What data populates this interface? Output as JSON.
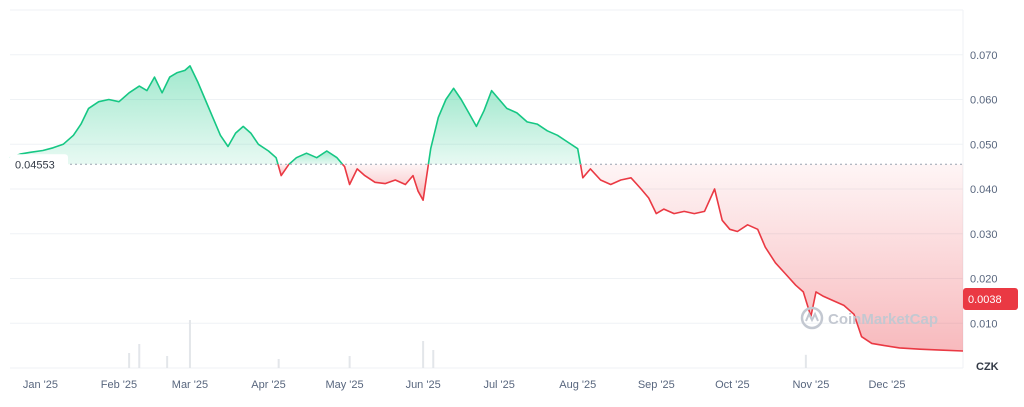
{
  "chart_data": {
    "type": "area",
    "reference_value": 0.04553,
    "reference_label": "0.04553",
    "current_value_label": "0.0038",
    "currency_label": "CZK",
    "watermark": "CoinMarketCap",
    "ylim": [
      0,
      0.08
    ],
    "y_ticks": [
      0.01,
      0.02,
      0.03,
      0.04,
      0.05,
      0.06,
      0.07
    ],
    "y_tick_labels": [
      "0.010",
      "0.020",
      "0.030",
      "0.040",
      "0.050",
      "0.060",
      "0.070"
    ],
    "x_ticks": [
      {
        "date": "2025-01-01",
        "label": "Jan '25"
      },
      {
        "date": "2025-02-01",
        "label": "Feb '25"
      },
      {
        "date": "2025-03-01",
        "label": "Mar '25"
      },
      {
        "date": "2025-04-01",
        "label": "Apr '25"
      },
      {
        "date": "2025-05-01",
        "label": "May '25"
      },
      {
        "date": "2025-06-01",
        "label": "Jun '25"
      },
      {
        "date": "2025-07-01",
        "label": "Jul '25"
      },
      {
        "date": "2025-08-01",
        "label": "Aug '25"
      },
      {
        "date": "2025-09-01",
        "label": "Sep '25"
      },
      {
        "date": "2025-10-01",
        "label": "Oct '25"
      },
      {
        "date": "2025-11-01",
        "label": "Nov '25"
      },
      {
        "date": "2025-12-01",
        "label": "Dec '25"
      }
    ],
    "x_range": [
      "2024-12-20",
      "2025-12-31"
    ],
    "colors": {
      "up": "#16c784",
      "down": "#ea3943",
      "grid": "#eff2f5",
      "volume": "#e3e6ea"
    },
    "series": [
      {
        "points": [
          [
            "2024-12-20",
            0.047
          ],
          [
            "2024-12-24",
            0.0478
          ],
          [
            "2024-12-28",
            0.0482
          ],
          [
            "2025-01-02",
            0.0486
          ],
          [
            "2025-01-06",
            0.0492
          ],
          [
            "2025-01-10",
            0.05
          ],
          [
            "2025-01-14",
            0.052
          ],
          [
            "2025-01-17",
            0.0545
          ],
          [
            "2025-01-20",
            0.058
          ],
          [
            "2025-01-24",
            0.0595
          ],
          [
            "2025-01-28",
            0.06
          ],
          [
            "2025-02-01",
            0.0595
          ],
          [
            "2025-02-05",
            0.0615
          ],
          [
            "2025-02-09",
            0.063
          ],
          [
            "2025-02-12",
            0.062
          ],
          [
            "2025-02-15",
            0.065
          ],
          [
            "2025-02-18",
            0.0615
          ],
          [
            "2025-02-21",
            0.065
          ],
          [
            "2025-02-24",
            0.066
          ],
          [
            "2025-02-27",
            0.0665
          ],
          [
            "2025-03-01",
            0.0675
          ],
          [
            "2025-03-04",
            0.064
          ],
          [
            "2025-03-07",
            0.06
          ],
          [
            "2025-03-10",
            0.056
          ],
          [
            "2025-03-13",
            0.052
          ],
          [
            "2025-03-16",
            0.0495
          ],
          [
            "2025-03-19",
            0.0525
          ],
          [
            "2025-03-22",
            0.054
          ],
          [
            "2025-03-25",
            0.0525
          ],
          [
            "2025-03-28",
            0.05
          ],
          [
            "2025-04-01",
            0.0485
          ],
          [
            "2025-04-04",
            0.047
          ],
          [
            "2025-04-06",
            0.043
          ],
          [
            "2025-04-09",
            0.0455
          ],
          [
            "2025-04-12",
            0.047
          ],
          [
            "2025-04-16",
            0.048
          ],
          [
            "2025-04-20",
            0.047
          ],
          [
            "2025-04-24",
            0.0485
          ],
          [
            "2025-04-28",
            0.047
          ],
          [
            "2025-05-01",
            0.045
          ],
          [
            "2025-05-03",
            0.041
          ],
          [
            "2025-05-06",
            0.0445
          ],
          [
            "2025-05-09",
            0.043
          ],
          [
            "2025-05-13",
            0.0415
          ],
          [
            "2025-05-17",
            0.0412
          ],
          [
            "2025-05-21",
            0.042
          ],
          [
            "2025-05-25",
            0.041
          ],
          [
            "2025-05-28",
            0.043
          ],
          [
            "2025-05-30",
            0.0395
          ],
          [
            "2025-06-01",
            0.0375
          ],
          [
            "2025-06-04",
            0.049
          ],
          [
            "2025-06-07",
            0.056
          ],
          [
            "2025-06-10",
            0.06
          ],
          [
            "2025-06-13",
            0.0625
          ],
          [
            "2025-06-16",
            0.06
          ],
          [
            "2025-06-19",
            0.057
          ],
          [
            "2025-06-22",
            0.054
          ],
          [
            "2025-06-25",
            0.0575
          ],
          [
            "2025-06-28",
            0.062
          ],
          [
            "2025-07-01",
            0.06
          ],
          [
            "2025-07-04",
            0.058
          ],
          [
            "2025-07-08",
            0.057
          ],
          [
            "2025-07-12",
            0.055
          ],
          [
            "2025-07-16",
            0.0545
          ],
          [
            "2025-07-20",
            0.053
          ],
          [
            "2025-07-24",
            0.052
          ],
          [
            "2025-07-28",
            0.0505
          ],
          [
            "2025-08-01",
            0.049
          ],
          [
            "2025-08-03",
            0.0425
          ],
          [
            "2025-08-06",
            0.0445
          ],
          [
            "2025-08-10",
            0.042
          ],
          [
            "2025-08-14",
            0.041
          ],
          [
            "2025-08-18",
            0.042
          ],
          [
            "2025-08-22",
            0.0425
          ],
          [
            "2025-08-26",
            0.04
          ],
          [
            "2025-08-29",
            0.038
          ],
          [
            "2025-09-01",
            0.0345
          ],
          [
            "2025-09-04",
            0.0355
          ],
          [
            "2025-09-08",
            0.0345
          ],
          [
            "2025-09-12",
            0.035
          ],
          [
            "2025-09-16",
            0.0345
          ],
          [
            "2025-09-20",
            0.035
          ],
          [
            "2025-09-24",
            0.04
          ],
          [
            "2025-09-27",
            0.033
          ],
          [
            "2025-09-30",
            0.031
          ],
          [
            "2025-10-03",
            0.0305
          ],
          [
            "2025-10-07",
            0.032
          ],
          [
            "2025-10-11",
            0.031
          ],
          [
            "2025-10-14",
            0.027
          ],
          [
            "2025-10-18",
            0.0235
          ],
          [
            "2025-10-22",
            0.021
          ],
          [
            "2025-10-26",
            0.0185
          ],
          [
            "2025-10-29",
            0.017
          ],
          [
            "2025-11-01",
            0.0115
          ],
          [
            "2025-11-03",
            0.017
          ],
          [
            "2025-11-06",
            0.016
          ],
          [
            "2025-11-10",
            0.015
          ],
          [
            "2025-11-14",
            0.014
          ],
          [
            "2025-11-18",
            0.012
          ],
          [
            "2025-11-21",
            0.007
          ],
          [
            "2025-11-25",
            0.0055
          ],
          [
            "2025-11-30",
            0.005
          ],
          [
            "2025-12-06",
            0.0045
          ],
          [
            "2025-12-14",
            0.0042
          ],
          [
            "2025-12-22",
            0.004
          ],
          [
            "2025-12-31",
            0.0038
          ]
        ]
      }
    ],
    "volume": [
      [
        "2025-02-05",
        0.25
      ],
      [
        "2025-02-09",
        0.4
      ],
      [
        "2025-02-20",
        0.2
      ],
      [
        "2025-03-01",
        0.8
      ],
      [
        "2025-04-05",
        0.15
      ],
      [
        "2025-05-03",
        0.2
      ],
      [
        "2025-06-01",
        0.45
      ],
      [
        "2025-06-05",
        0.3
      ],
      [
        "2025-10-30",
        0.22
      ]
    ]
  }
}
